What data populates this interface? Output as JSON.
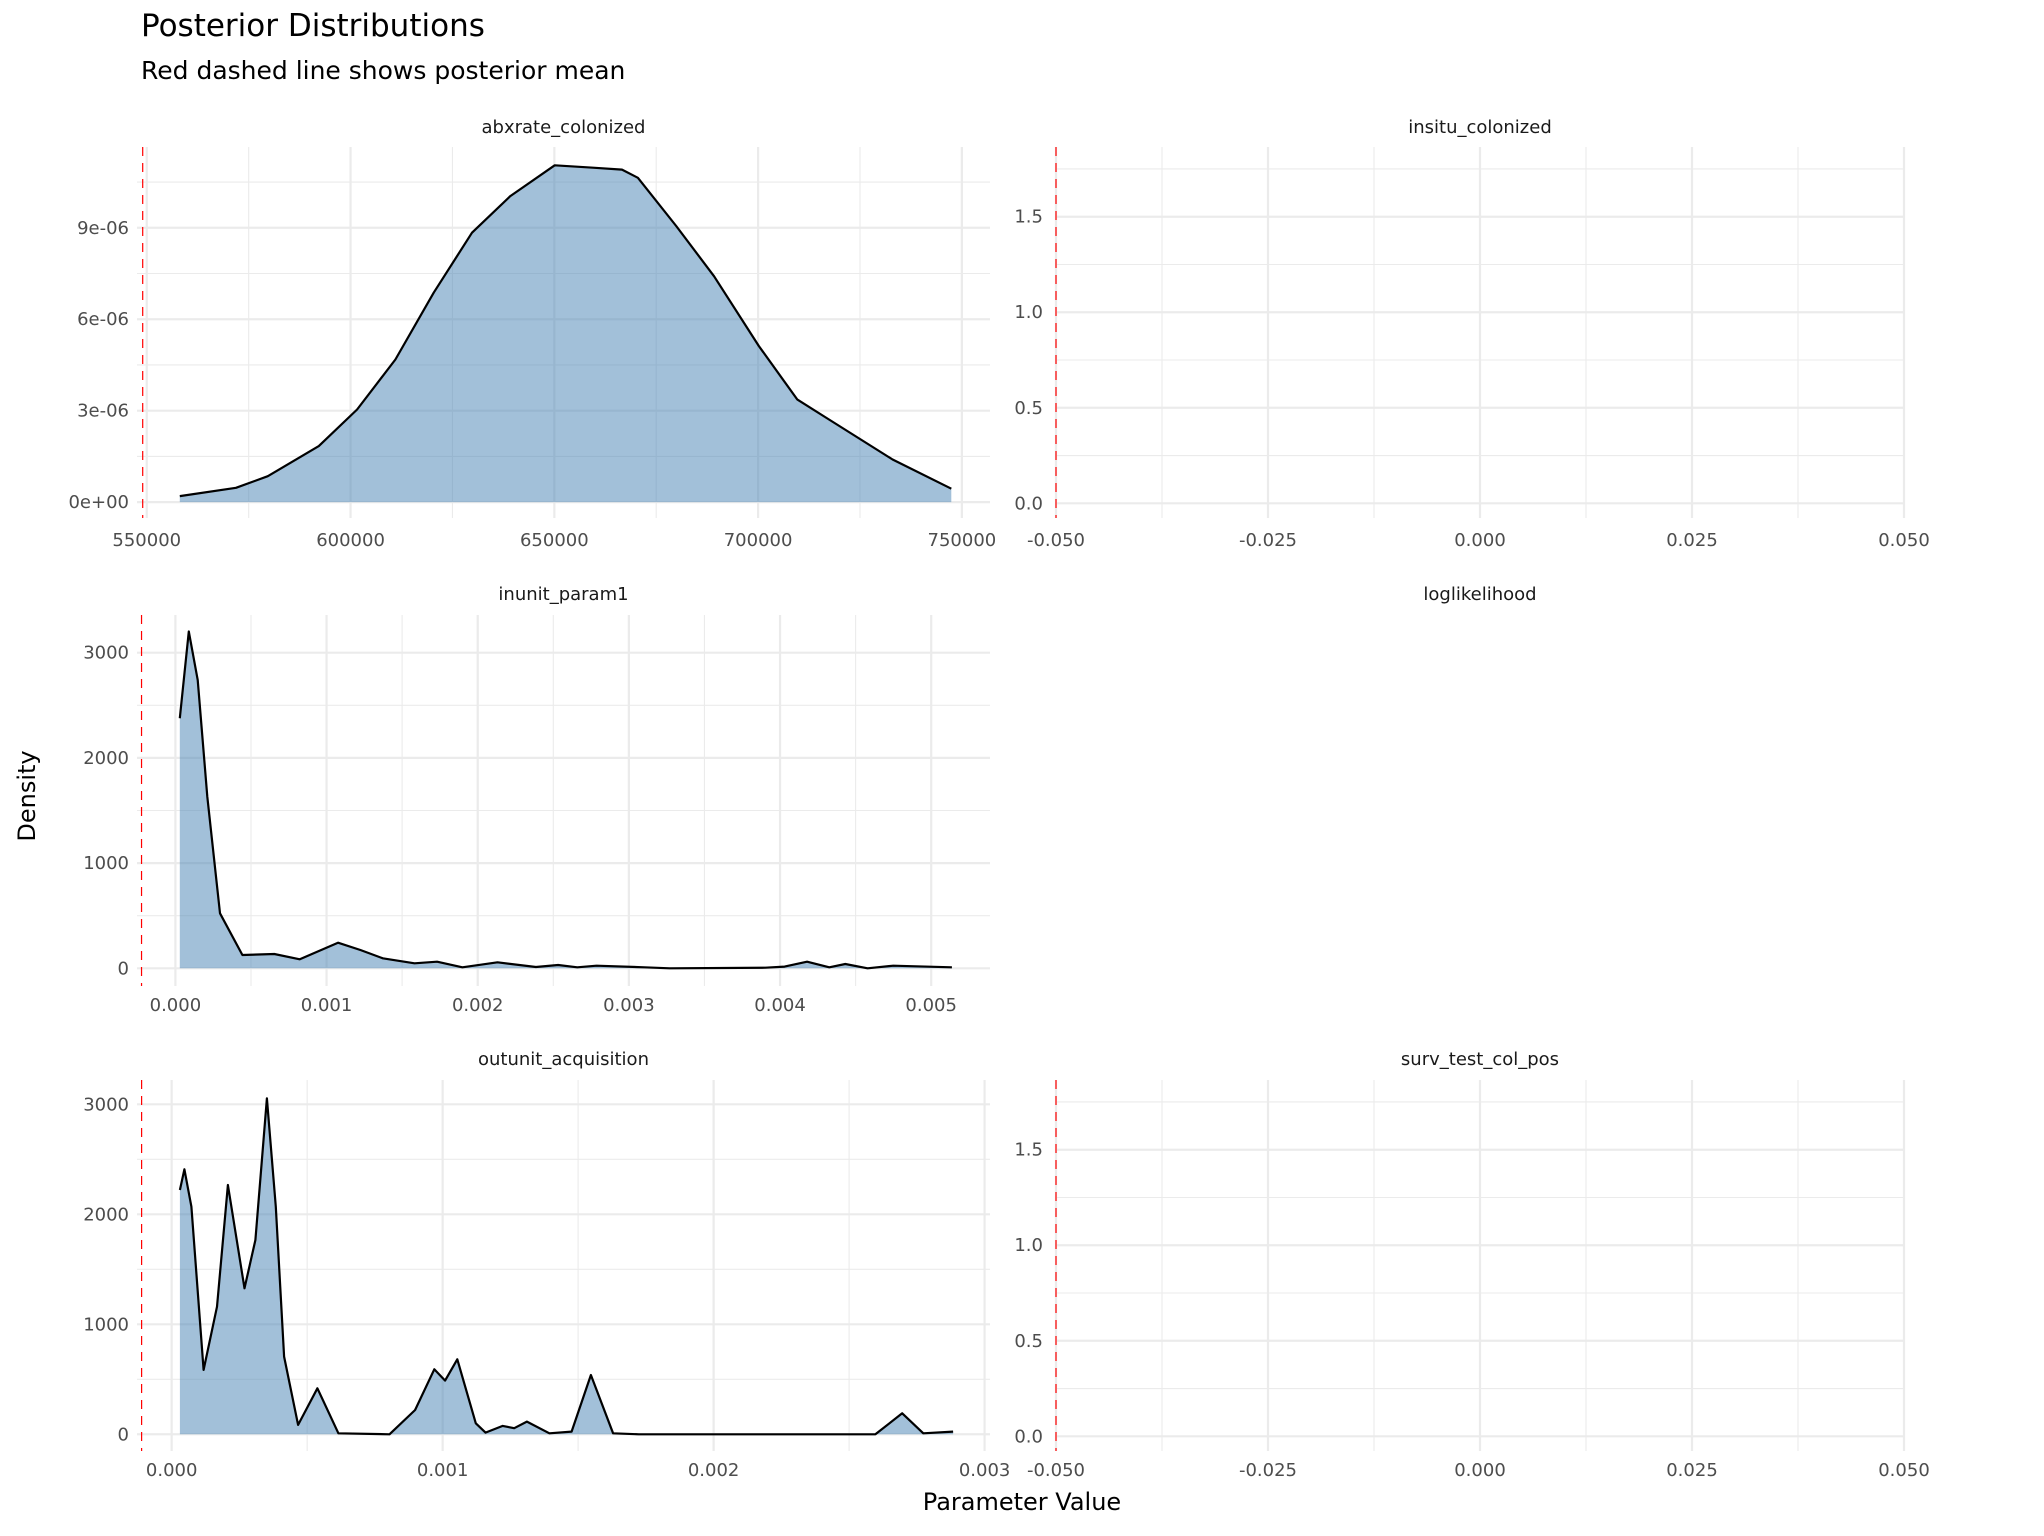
{
  "chart_data": {
    "type": "area",
    "title": "Posterior Distributions",
    "subtitle": "Red dashed line shows posterior mean",
    "xlabel": "Parameter Value",
    "ylabel": "Density",
    "fill_color": "#4682b4",
    "line_color": "#000000",
    "mean_line_color": "#ff0000",
    "grid": true,
    "panels": [
      {
        "name": "abxrate_colonized",
        "xlim": [
          547600,
          756900
        ],
        "ylim": [
          -5.2e-07,
          1.165e-05
        ],
        "xticks": [
          550000,
          600000,
          650000,
          700000,
          750000
        ],
        "xtick_labels": [
          "550000",
          "600000",
          "650000",
          "700000",
          "750000"
        ],
        "xminor": [
          575000,
          625000,
          675000,
          725000
        ],
        "yticks": [
          0,
          3e-06,
          6e-06,
          9e-06
        ],
        "ytick_labels": [
          "0e+00",
          "3e-06",
          "6e-06",
          "9e-06"
        ],
        "yminor": [
          1.5e-06,
          4.5e-06,
          7.5e-06,
          1.05e-05
        ],
        "mean": 549000,
        "x": [
          558100,
          571900,
          579700,
          592200,
          601600,
          611000,
          620400,
          629800,
          639200,
          650100,
          659500,
          666600,
          670500,
          679900,
          689200,
          700200,
          709600,
          717400,
          733000,
          747400
        ],
        "y": [
          2e-07,
          4.7e-07,
          8.5e-07,
          1.84e-06,
          3.04e-06,
          4.68e-06,
          6.87e-06,
          8.84e-06,
          1.004e-05,
          1.105e-05,
          1.097e-05,
          1.091e-05,
          1.064e-05,
          9.06e-06,
          7.41e-06,
          5.12e-06,
          3.37e-06,
          2.71e-06,
          1.4e-06,
          4.4e-07
        ]
      },
      {
        "name": "insitu_colonized",
        "xlim": [
          -0.05,
          0.05
        ],
        "ylim": [
          -0.077,
          1.865
        ],
        "xticks": [
          -0.05,
          -0.025,
          0,
          0.025,
          0.05
        ],
        "xtick_labels": [
          "-0.050",
          "-0.025",
          "0.000",
          "0.025",
          "0.050"
        ],
        "xminor": [
          -0.0375,
          -0.0125,
          0.0125,
          0.0375
        ],
        "yticks": [
          0,
          0.5,
          1.0,
          1.5
        ],
        "ytick_labels": [
          "0.0",
          "0.5",
          "1.0",
          "1.5"
        ],
        "yminor": [
          0.25,
          0.75,
          1.25,
          1.75
        ],
        "mean": -0.05,
        "x": [],
        "y": []
      },
      {
        "name": "inunit_param1",
        "xlim": [
          -0.000254,
          0.005389
        ],
        "ylim": [
          -168,
          3358
        ],
        "xticks": [
          0,
          0.001,
          0.002,
          0.003,
          0.004,
          0.005
        ],
        "xtick_labels": [
          "0.000",
          "0.001",
          "0.002",
          "0.003",
          "0.004",
          "0.005"
        ],
        "xminor": [
          0.0005,
          0.0015,
          0.0025,
          0.0035,
          0.0045
        ],
        "yticks": [
          0,
          1000,
          2000,
          3000
        ],
        "ytick_labels": [
          "0",
          "1000",
          "2000",
          "3000"
        ],
        "yminor": [
          500,
          1500,
          2500
        ],
        "mean": -0.000224,
        "x": [
          2.9e-05,
          8.87e-05,
          0.0001476,
          0.000211,
          0.000295,
          0.000443,
          0.000654,
          0.000823,
          0.001076,
          0.001224,
          0.001372,
          0.001582,
          0.001731,
          0.001899,
          0.002131,
          0.002385,
          0.002532,
          0.002659,
          0.002786,
          0.003102,
          0.003271,
          0.003904,
          0.00403,
          0.004179,
          0.004326,
          0.004432,
          0.004579,
          0.004749,
          0.005137
        ],
        "y": [
          2377,
          3201,
          2741,
          1632,
          523,
          127,
          136,
          86,
          244,
          174,
          95,
          48,
          63,
          10,
          57,
          13,
          32,
          10,
          25,
          10,
          0,
          6,
          16,
          63,
          10,
          41,
          0,
          25,
          10
        ]
      },
      {
        "name": "loglikelihood",
        "empty": true,
        "x": [],
        "y": []
      },
      {
        "name": "outunit_acquisition",
        "xlim": [
          -0.000128,
          0.00302
        ],
        "ylim": [
          -152,
          3221
        ],
        "xticks": [
          0,
          0.001,
          0.002,
          0.003
        ],
        "xtick_labels": [
          "0.000",
          "0.001",
          "0.002",
          "0.003"
        ],
        "xminor": [
          0.0005,
          0.0015,
          0.0025
        ],
        "yticks": [
          0,
          1000,
          2000,
          3000
        ],
        "ytick_labels": [
          "0",
          "1000",
          "2000",
          "3000"
        ],
        "yminor": [
          500,
          1500,
          2500
        ],
        "mean": -0.000111,
        "x": [
          3.04e-05,
          4.7e-05,
          7.29e-05,
          0.0001177,
          0.0001672,
          0.0002073,
          0.0002688,
          0.0003088,
          0.0003513,
          0.0003843,
          0.000415,
          0.0004667,
          0.0005377,
          0.0006154,
          0.000804,
          0.0008983,
          0.0009693,
          0.0010092,
          0.001054,
          0.0011224,
          0.001158,
          0.0012216,
          0.001264,
          0.001311,
          0.001394,
          0.001476,
          0.001547,
          0.001629,
          0.001724,
          0.002597,
          0.002696,
          0.002774,
          0.002884
        ],
        "y": [
          2221,
          2409,
          2069,
          585,
          1160,
          2266,
          1327,
          1766,
          3054,
          2069,
          706,
          85,
          418,
          9,
          0,
          221,
          591,
          488,
          682,
          100,
          15,
          76,
          55,
          115,
          9,
          24,
          539,
          9,
          0,
          0,
          191,
          9,
          24
        ]
      },
      {
        "name": "surv_test_col_pos",
        "xlim": [
          -0.05,
          0.05
        ],
        "ylim": [
          -0.077,
          1.865
        ],
        "xticks": [
          -0.05,
          -0.025,
          0,
          0.025,
          0.05
        ],
        "xtick_labels": [
          "-0.050",
          "-0.025",
          "0.000",
          "0.025",
          "0.050"
        ],
        "xminor": [
          -0.0375,
          -0.0125,
          0.0125,
          0.0375
        ],
        "yticks": [
          0,
          0.5,
          1.0,
          1.5
        ],
        "ytick_labels": [
          "0.0",
          "0.5",
          "1.0",
          "1.5"
        ],
        "yminor": [
          0.25,
          0.75,
          1.25,
          1.75
        ],
        "mean": -0.05,
        "x": [],
        "y": []
      }
    ]
  }
}
